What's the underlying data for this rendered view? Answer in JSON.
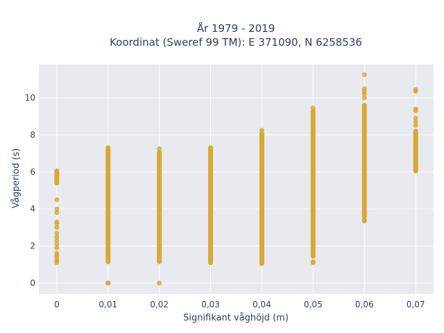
{
  "chart_data": {
    "type": "scatter",
    "title_lines": [
      "År 1979 - 2019",
      "Koordinat (Sweref 99 TM): E 371090, N 6258536"
    ],
    "xlabel": "Signifikant våghöjd (m)",
    "ylabel": "Vågperiod (s)",
    "x_ticks": [
      "0",
      "0,01",
      "0,02",
      "0,03",
      "0,04",
      "0,05",
      "0,06",
      "0,07"
    ],
    "y_ticks": [
      "0",
      "2",
      "4",
      "6",
      "8",
      "10"
    ],
    "xlim": [
      -0.0035,
      0.0735
    ],
    "ylim": [
      -0.6,
      11.8
    ],
    "grid": true,
    "colors": {
      "marker": "#d4a62a",
      "plot_bg": "#e9e9f0",
      "grid": "#ffffff"
    },
    "series": [
      {
        "columns": [
          {
            "x": 0,
            "ranges": [
              [
                5.4,
                6.05
              ]
            ],
            "points": [
              1.1,
              1.2,
              1.35,
              1.5,
              1.6,
              1.9,
              2.1,
              2.3,
              2.5,
              2.7,
              3.0,
              3.2,
              3.3,
              3.8,
              4.0,
              4.5
            ]
          },
          {
            "x": 0.01,
            "ranges": [
              [
                1.15,
                7.3
              ]
            ],
            "points": [
              0.0,
              0.0
            ]
          },
          {
            "x": 0.02,
            "ranges": [
              [
                1.15,
                7.05
              ]
            ],
            "points": [
              0.0,
              7.25
            ]
          },
          {
            "x": 0.03,
            "ranges": [
              [
                1.1,
                7.3
              ]
            ],
            "points": []
          },
          {
            "x": 0.04,
            "ranges": [
              [
                1.05,
                8.05
              ]
            ],
            "points": [
              8.25
            ]
          },
          {
            "x": 0.05,
            "ranges": [
              [
                1.45,
                9.2
              ]
            ],
            "points": [
              1.1,
              1.15,
              9.3,
              9.45
            ]
          },
          {
            "x": 0.06,
            "ranges": [
              [
                3.6,
                9.6
              ]
            ],
            "points": [
              3.35,
              3.4,
              10.0,
              10.2,
              10.35,
              10.5,
              11.25
            ]
          },
          {
            "x": 0.07,
            "ranges": [
              [
                6.05,
                8.2
              ]
            ],
            "points": [
              8.5,
              8.7,
              8.9,
              9.3,
              9.4,
              10.35,
              10.45
            ]
          }
        ]
      }
    ]
  }
}
